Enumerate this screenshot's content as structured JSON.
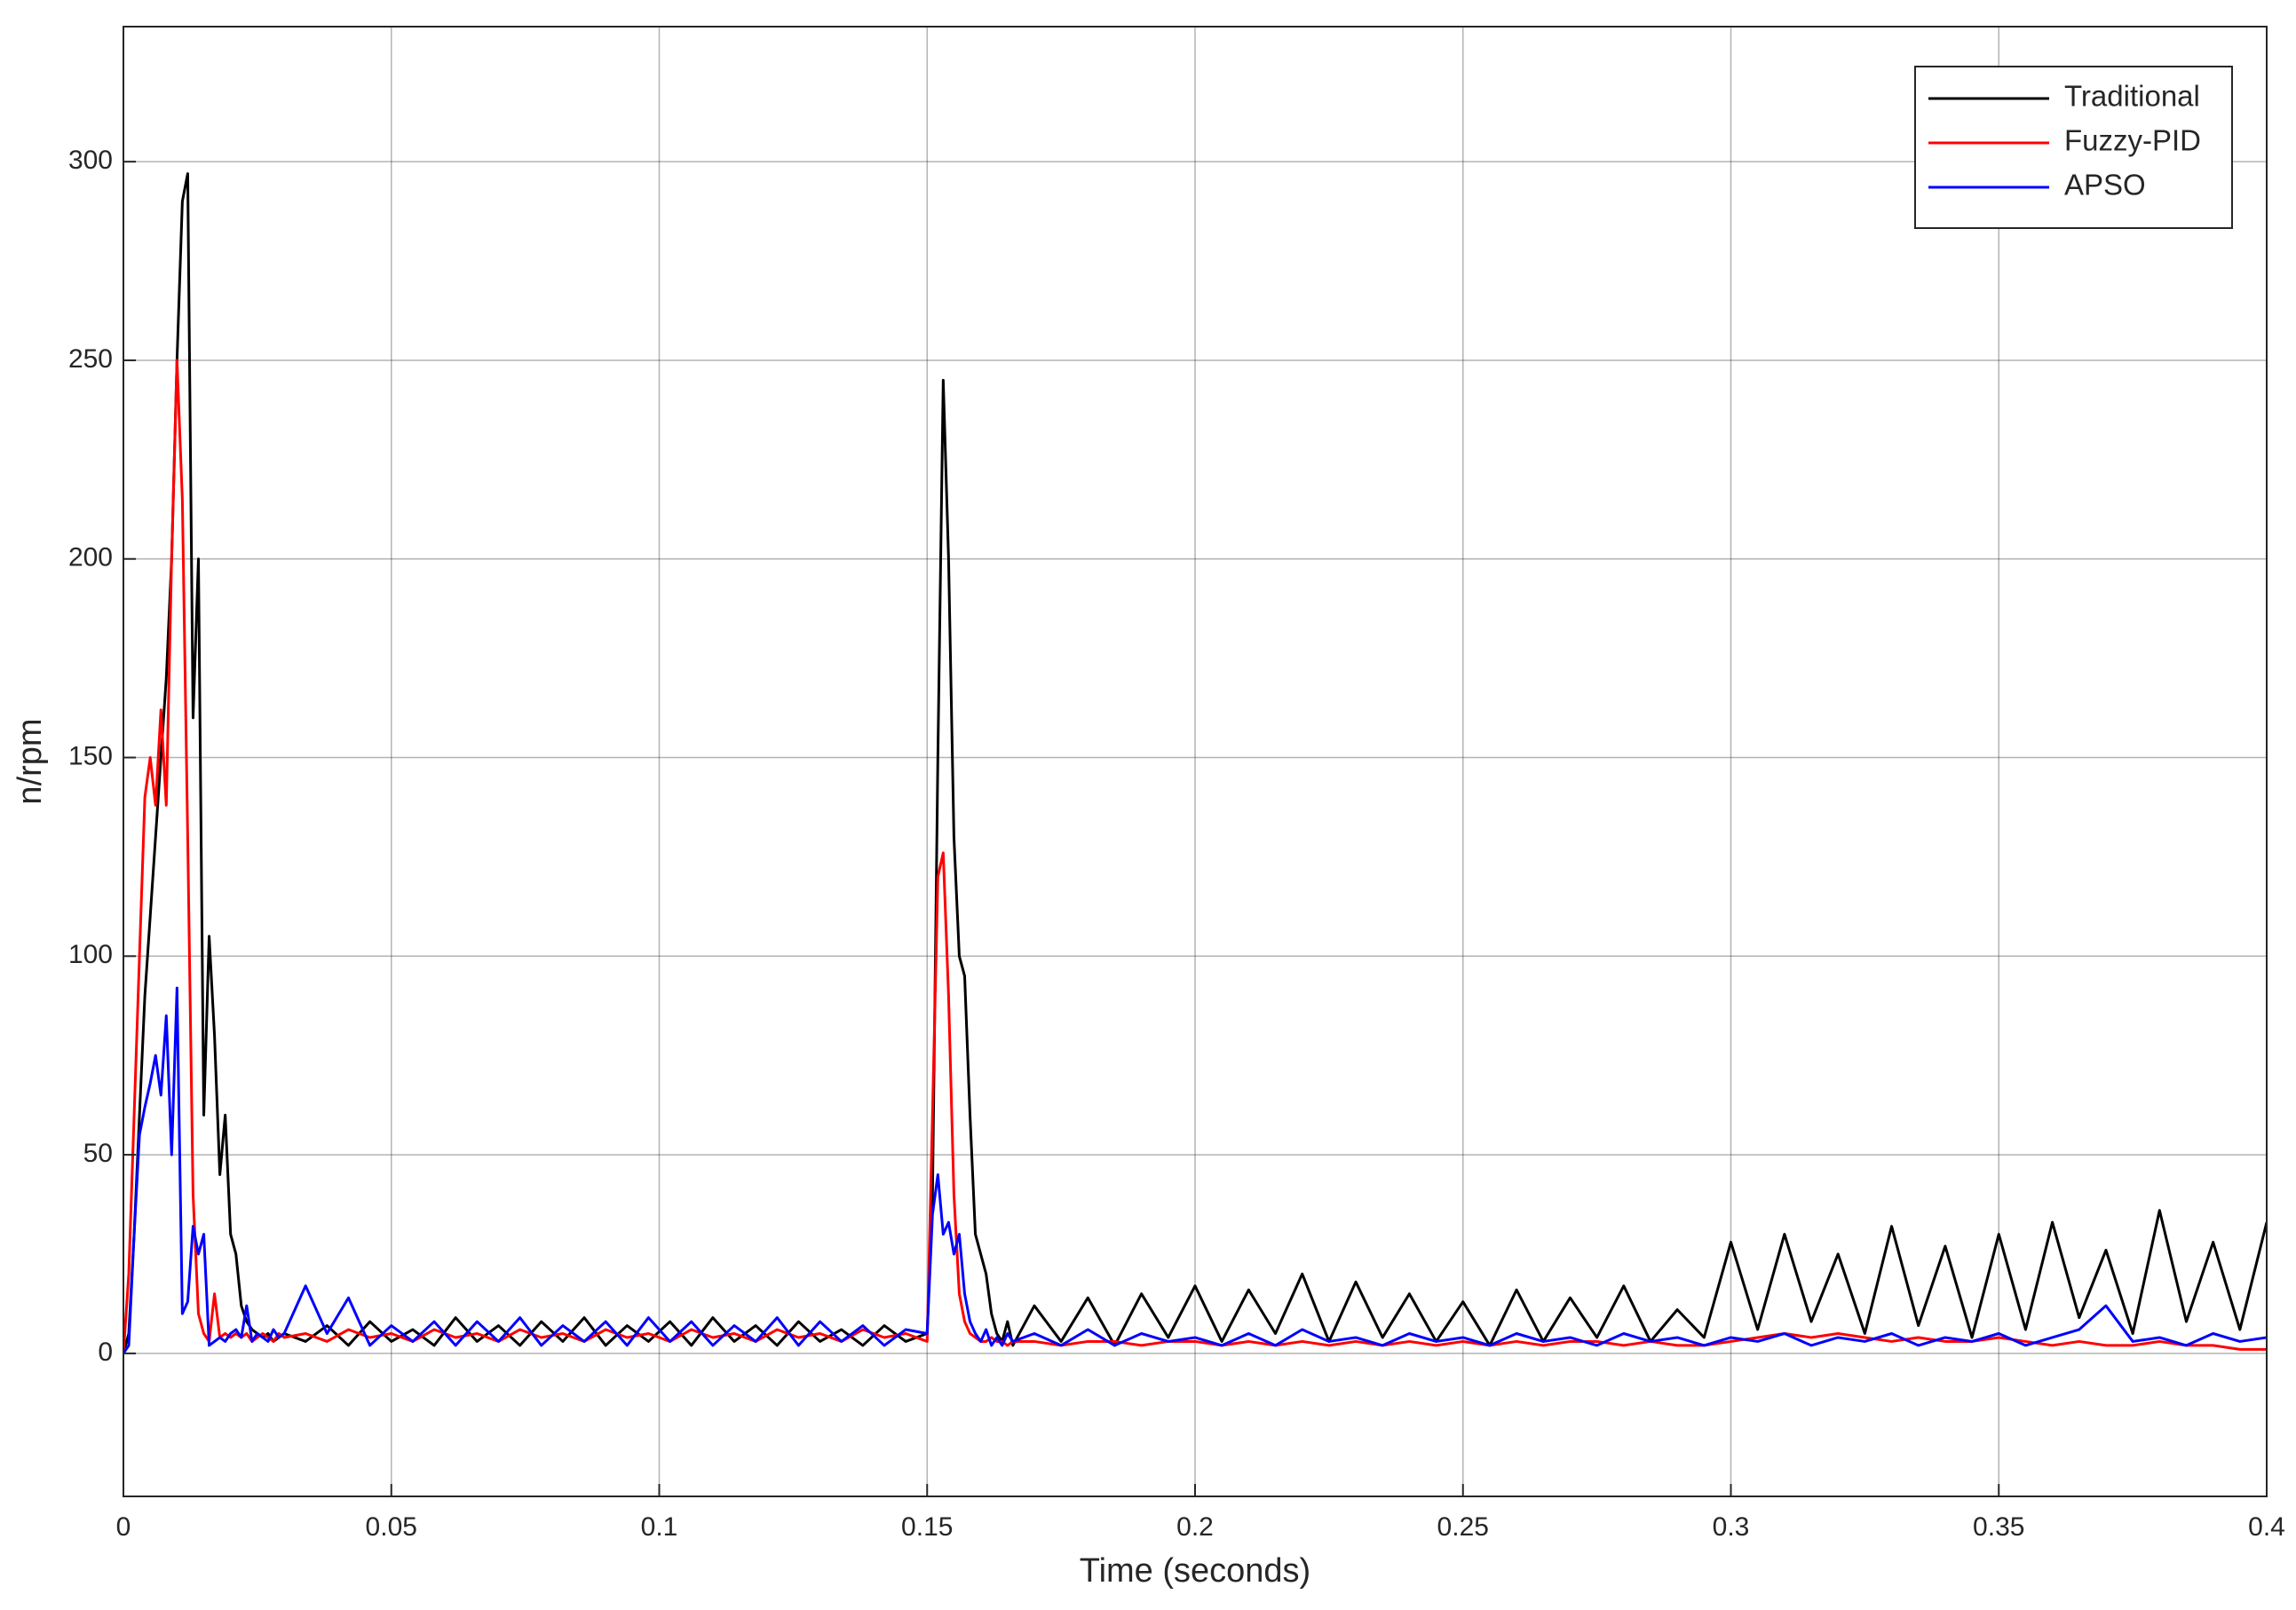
{
  "chart_data": {
    "type": "line",
    "xlabel": "Time (seconds)",
    "ylabel": "n/rpm",
    "xlim": [
      0,
      0.4
    ],
    "ylim": [
      -36,
      334
    ],
    "xticks": [
      0,
      0.05,
      0.1,
      0.15,
      0.2,
      0.25,
      0.3,
      0.35,
      0.4
    ],
    "yticks": [
      0,
      50,
      100,
      150,
      200,
      250,
      300
    ],
    "grid": true,
    "legend": "northeast",
    "x": [
      0,
      0.001,
      0.002,
      0.003,
      0.004,
      0.005,
      0.006,
      0.007,
      0.008,
      0.009,
      0.01,
      0.011,
      0.012,
      0.013,
      0.014,
      0.015,
      0.016,
      0.017,
      0.018,
      0.019,
      0.02,
      0.021,
      0.022,
      0.023,
      0.024,
      0.025,
      0.026,
      0.027,
      0.028,
      0.029,
      0.03,
      0.034,
      0.038,
      0.042,
      0.046,
      0.05,
      0.054,
      0.058,
      0.062,
      0.066,
      0.07,
      0.074,
      0.078,
      0.082,
      0.086,
      0.09,
      0.094,
      0.098,
      0.102,
      0.106,
      0.11,
      0.114,
      0.118,
      0.122,
      0.126,
      0.13,
      0.134,
      0.138,
      0.142,
      0.146,
      0.15,
      0.151,
      0.152,
      0.153,
      0.154,
      0.155,
      0.156,
      0.157,
      0.158,
      0.159,
      0.16,
      0.161,
      0.162,
      0.163,
      0.164,
      0.165,
      0.166,
      0.17,
      0.175,
      0.18,
      0.185,
      0.19,
      0.195,
      0.2,
      0.205,
      0.21,
      0.215,
      0.22,
      0.225,
      0.23,
      0.235,
      0.24,
      0.245,
      0.25,
      0.255,
      0.26,
      0.265,
      0.27,
      0.275,
      0.28,
      0.285,
      0.29,
      0.295,
      0.3,
      0.305,
      0.31,
      0.315,
      0.32,
      0.325,
      0.33,
      0.335,
      0.34,
      0.345,
      0.35,
      0.355,
      0.36,
      0.365,
      0.37,
      0.375,
      0.38,
      0.385,
      0.39,
      0.395,
      0.4
    ],
    "series": [
      {
        "name": "Traditional",
        "color": "#000000",
        "values": [
          0,
          5,
          30,
          60,
          90,
          110,
          130,
          150,
          170,
          200,
          250,
          290,
          297,
          160,
          200,
          60,
          105,
          80,
          45,
          60,
          30,
          25,
          12,
          8,
          6,
          5,
          4,
          5,
          3,
          4,
          5,
          3,
          7,
          2,
          8,
          3,
          6,
          2,
          9,
          3,
          7,
          2,
          8,
          3,
          9,
          2,
          7,
          3,
          8,
          2,
          9,
          3,
          7,
          2,
          8,
          3,
          6,
          2,
          7,
          3,
          5,
          40,
          150,
          245,
          200,
          130,
          100,
          95,
          60,
          30,
          25,
          20,
          10,
          5,
          3,
          8,
          2,
          12,
          3,
          14,
          2,
          15,
          4,
          17,
          3,
          16,
          5,
          20,
          3,
          18,
          4,
          15,
          3,
          13,
          2,
          16,
          3,
          14,
          4,
          17,
          3,
          11,
          4,
          28,
          6,
          30,
          8,
          25,
          5,
          32,
          7,
          27,
          4,
          30,
          6,
          33,
          9,
          26,
          5,
          36,
          8,
          28,
          6,
          33
        ]
      },
      {
        "name": "Fuzzy-PID",
        "color": "#ff0000",
        "values": [
          0,
          20,
          60,
          100,
          140,
          150,
          138,
          162,
          138,
          200,
          250,
          215,
          130,
          40,
          10,
          5,
          3,
          15,
          4,
          5,
          4,
          5,
          4,
          5,
          3,
          4,
          5,
          4,
          3,
          5,
          4,
          5,
          3,
          6,
          4,
          5,
          3,
          6,
          4,
          5,
          3,
          6,
          4,
          5,
          3,
          6,
          4,
          5,
          3,
          6,
          4,
          5,
          3,
          6,
          4,
          5,
          3,
          6,
          4,
          5,
          3,
          60,
          120,
          126,
          90,
          40,
          15,
          8,
          5,
          4,
          3,
          3,
          4,
          3,
          3,
          2,
          3,
          3,
          2,
          3,
          3,
          2,
          3,
          3,
          2,
          3,
          2,
          3,
          2,
          3,
          2,
          3,
          2,
          3,
          2,
          3,
          2,
          3,
          3,
          2,
          3,
          2,
          2,
          3,
          4,
          5,
          4,
          5,
          4,
          3,
          4,
          3,
          3,
          4,
          3,
          2,
          3,
          2,
          2,
          3,
          2,
          2,
          1,
          1
        ]
      },
      {
        "name": "APSO",
        "color": "#0000ff",
        "values": [
          0,
          2,
          30,
          55,
          62,
          68,
          75,
          65,
          85,
          50,
          92,
          10,
          13,
          32,
          25,
          30,
          2,
          3,
          4,
          3,
          5,
          6,
          4,
          12,
          3,
          5,
          4,
          3,
          6,
          4,
          5,
          17,
          5,
          14,
          2,
          7,
          3,
          8,
          2,
          8,
          3,
          9,
          2,
          7,
          3,
          8,
          2,
          9,
          3,
          8,
          2,
          7,
          3,
          9,
          2,
          8,
          3,
          7,
          2,
          6,
          5,
          35,
          45,
          30,
          33,
          25,
          30,
          15,
          8,
          5,
          3,
          6,
          2,
          4,
          2,
          5,
          3,
          5,
          2,
          6,
          2,
          5,
          3,
          4,
          2,
          5,
          2,
          6,
          3,
          4,
          2,
          5,
          3,
          4,
          2,
          5,
          3,
          4,
          2,
          5,
          3,
          4,
          2,
          4,
          3,
          5,
          2,
          4,
          3,
          5,
          2,
          4,
          3,
          5,
          2,
          4,
          6,
          12,
          3,
          4,
          2,
          5,
          3,
          4
        ]
      }
    ]
  }
}
